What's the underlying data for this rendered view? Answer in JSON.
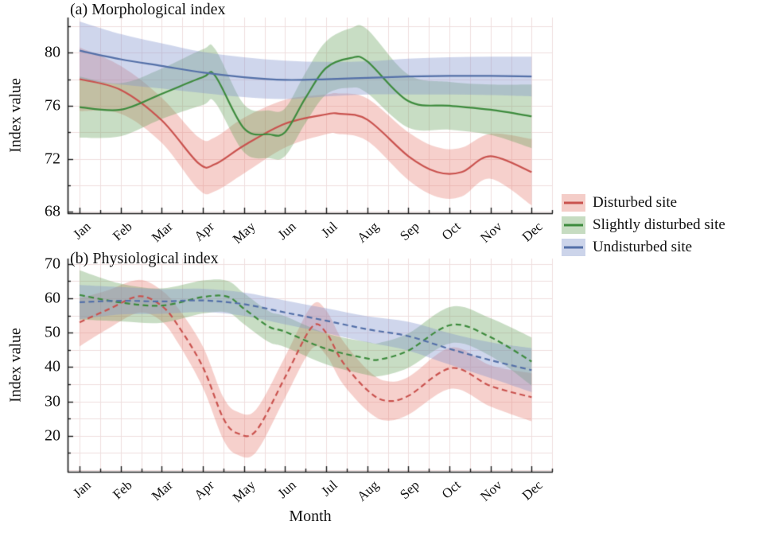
{
  "months": [
    "Jan",
    "Feb",
    "Mar",
    "Apr",
    "May",
    "Jun",
    "Jul",
    "Aug",
    "Sep",
    "Oct",
    "Nov",
    "Dec"
  ],
  "legend": {
    "items": [
      {
        "label": "Disturbed site",
        "line_color": "#c9524e",
        "swatch_fill": "#f4cdc8"
      },
      {
        "label": "Slightly disturbed site",
        "line_color": "#3d8b3d",
        "swatch_fill": "#c6dcc1"
      },
      {
        "label": "Undisturbed site",
        "line_color": "#5470a8",
        "swatch_fill": "#ccd4ea"
      }
    ]
  },
  "style": {
    "grid_color": "#efdede",
    "axis_color": "#1a1a1a",
    "text_color": "#111111"
  },
  "chart_data": [
    {
      "type": "line",
      "title": "(a) Morphological index",
      "ylabel": "Index value",
      "ylim": [
        67.9,
        82.65
      ],
      "yticks": [
        68,
        72,
        76,
        80
      ],
      "yminor": [
        70,
        74,
        78,
        82
      ],
      "grid_y": [
        68,
        70,
        72,
        74,
        76,
        78,
        80,
        82
      ],
      "line_dash": [],
      "series": [
        {
          "name": "Disturbed site",
          "color": "#c9524e",
          "band_color": "rgba(228,112,100,0.33)",
          "monthly_values": [
            78.0,
            77.2,
            74.9,
            71.6,
            73.0,
            74.7,
            75.4,
            75.0,
            72.2,
            71.0,
            72.2,
            71.0
          ],
          "control_points": [
            [
              0,
              78.0
            ],
            [
              1,
              77.2
            ],
            [
              2,
              74.9
            ],
            [
              2.9,
              71.65
            ],
            [
              3.3,
              71.6
            ],
            [
              4,
              73.0
            ],
            [
              5,
              74.65
            ],
            [
              6,
              75.35
            ],
            [
              6.3,
              75.4
            ],
            [
              7,
              74.95
            ],
            [
              8,
              72.2
            ],
            [
              8.7,
              71.0
            ],
            [
              9.3,
              71.0
            ],
            [
              10,
              72.2
            ],
            [
              11,
              71.0
            ]
          ],
          "band_halfwidth": [
            [
              0,
              2.4
            ],
            [
              1,
              1.8
            ],
            [
              2,
              1.7
            ],
            [
              3,
              2.0
            ],
            [
              4,
              2.1
            ],
            [
              5,
              1.8
            ],
            [
              6,
              1.5
            ],
            [
              7,
              1.6
            ],
            [
              8,
              1.8
            ],
            [
              9,
              1.9
            ],
            [
              10,
              1.7
            ],
            [
              11,
              2.5
            ]
          ]
        },
        {
          "name": "Slightly disturbed site",
          "color": "#3d8b3d",
          "band_color": "rgba(96,158,86,0.35)",
          "monthly_values": [
            75.9,
            75.7,
            76.9,
            78.2,
            74.3,
            74.0,
            78.9,
            79.4,
            76.4,
            76.0,
            75.7,
            75.2
          ],
          "control_points": [
            [
              0,
              75.9
            ],
            [
              1,
              75.7
            ],
            [
              2,
              76.9
            ],
            [
              3,
              78.15
            ],
            [
              3.3,
              78.25
            ],
            [
              4,
              74.3
            ],
            [
              4.6,
              73.85
            ],
            [
              5,
              74.0
            ],
            [
              5.5,
              76.6
            ],
            [
              6,
              78.85
            ],
            [
              6.6,
              79.6
            ],
            [
              7,
              79.35
            ],
            [
              8,
              76.35
            ],
            [
              9,
              76.0
            ],
            [
              10,
              75.7
            ],
            [
              11,
              75.2
            ]
          ],
          "band_halfwidth": [
            [
              0,
              2.3
            ],
            [
              1,
              2.0
            ],
            [
              2,
              1.9
            ],
            [
              3,
              2.1
            ],
            [
              4,
              1.8
            ],
            [
              5,
              1.8
            ],
            [
              6,
              2.0
            ],
            [
              7,
              2.4
            ],
            [
              8,
              2.0
            ],
            [
              9,
              1.8
            ],
            [
              10,
              1.9
            ],
            [
              11,
              2.4
            ]
          ]
        },
        {
          "name": "Undisturbed site",
          "color": "#5470a8",
          "band_color": "rgba(128,146,204,0.38)",
          "monthly_values": [
            80.2,
            79.5,
            79.0,
            78.5,
            78.2,
            78.0,
            78.0,
            78.1,
            78.2,
            78.3,
            78.3,
            78.2
          ],
          "control_points": [
            [
              0,
              80.15
            ],
            [
              1,
              79.5
            ],
            [
              2,
              79.0
            ],
            [
              3,
              78.5
            ],
            [
              4,
              78.15
            ],
            [
              5,
              77.95
            ],
            [
              6,
              78.0
            ],
            [
              7,
              78.1
            ],
            [
              8,
              78.2
            ],
            [
              9,
              78.25
            ],
            [
              10,
              78.25
            ],
            [
              11,
              78.2
            ]
          ],
          "band_halfwidth": [
            [
              0,
              2.2
            ],
            [
              1,
              1.9
            ],
            [
              2,
              1.7
            ],
            [
              3,
              1.55
            ],
            [
              4,
              1.5
            ],
            [
              5,
              1.45
            ],
            [
              6,
              1.3
            ],
            [
              7,
              1.25
            ],
            [
              8,
              1.35
            ],
            [
              9,
              1.4
            ],
            [
              10,
              1.45
            ],
            [
              11,
              1.5
            ]
          ]
        }
      ]
    },
    {
      "type": "line",
      "title": "(b) Physiological index",
      "ylabel": "Index value",
      "xlabel": "Month",
      "ylim": [
        9.5,
        71.6
      ],
      "yticks": [
        20,
        30,
        40,
        50,
        60,
        70
      ],
      "yminor": [
        15,
        25,
        35,
        45,
        55,
        65
      ],
      "grid_y": [
        10,
        15,
        20,
        25,
        30,
        35,
        40,
        45,
        50,
        55,
        60,
        65,
        70
      ],
      "line_dash": [
        7,
        4.5
      ],
      "series": [
        {
          "name": "Disturbed site",
          "color": "#c9524e",
          "band_color": "rgba(228,112,100,0.33)",
          "monthly_values": [
            53.0,
            58.2,
            57.8,
            40.0,
            21.0,
            37.0,
            50.0,
            33.4,
            31.6,
            39.6,
            34.5,
            31.2
          ],
          "control_points": [
            [
              0,
              53.0
            ],
            [
              0.7,
              56.8
            ],
            [
              1.45,
              60.6
            ],
            [
              2,
              57.8
            ],
            [
              2.4,
              52.0
            ],
            [
              3,
              40.0
            ],
            [
              3.5,
              25.0
            ],
            [
              3.85,
              20.7
            ],
            [
              4.3,
              21.5
            ],
            [
              5,
              37.0
            ],
            [
              5.65,
              51.6
            ],
            [
              6,
              50.0
            ],
            [
              6.4,
              41.5
            ],
            [
              7,
              33.3
            ],
            [
              7.45,
              30.2
            ],
            [
              8,
              31.6
            ],
            [
              9.05,
              39.7
            ],
            [
              10,
              34.5
            ],
            [
              11,
              31.2
            ]
          ],
          "band_halfwidth": [
            [
              0,
              7.0
            ],
            [
              1,
              5.0
            ],
            [
              2,
              4.5
            ],
            [
              3,
              6.0
            ],
            [
              4,
              6.3
            ],
            [
              5,
              6.0
            ],
            [
              6,
              6.5
            ],
            [
              7,
              6.0
            ],
            [
              8,
              5.5
            ],
            [
              9,
              6.0
            ],
            [
              10,
              6.0
            ],
            [
              11,
              7.0
            ]
          ]
        },
        {
          "name": "Slightly disturbed site",
          "color": "#3d8b3d",
          "band_color": "rgba(96,158,86,0.35)",
          "monthly_values": [
            61.0,
            58.8,
            57.9,
            60.4,
            57.0,
            50.3,
            45.3,
            42.3,
            44.8,
            52.3,
            48.7,
            41.6
          ],
          "control_points": [
            [
              0,
              61.0
            ],
            [
              1,
              58.8
            ],
            [
              2,
              57.9
            ],
            [
              3,
              60.4
            ],
            [
              3.6,
              60.5
            ],
            [
              4,
              57.0
            ],
            [
              4.6,
              51.8
            ],
            [
              5,
              50.3
            ],
            [
              6,
              45.3
            ],
            [
              7,
              42.5
            ],
            [
              7.3,
              42.2
            ],
            [
              8,
              44.8
            ],
            [
              9.05,
              52.3
            ],
            [
              10,
              48.7
            ],
            [
              11,
              41.6
            ]
          ],
          "band_halfwidth": [
            [
              0,
              7.2
            ],
            [
              1,
              5.5
            ],
            [
              2,
              5.0
            ],
            [
              3,
              4.8
            ],
            [
              4,
              4.5
            ],
            [
              5,
              4.5
            ],
            [
              6,
              4.5
            ],
            [
              7,
              4.8
            ],
            [
              8,
              5.0
            ],
            [
              9,
              5.3
            ],
            [
              10,
              5.5
            ],
            [
              11,
              7.0
            ]
          ]
        },
        {
          "name": "Undisturbed site",
          "color": "#5470a8",
          "band_color": "rgba(128,146,204,0.38)",
          "monthly_values": [
            58.9,
            59.3,
            59.1,
            59.4,
            58.3,
            55.9,
            53.5,
            51.0,
            49.0,
            45.3,
            42.0,
            39.1
          ],
          "control_points": [
            [
              0,
              58.9
            ],
            [
              1,
              59.3
            ],
            [
              2,
              59.1
            ],
            [
              3,
              59.4
            ],
            [
              4,
              58.3
            ],
            [
              5,
              55.9
            ],
            [
              6,
              53.5
            ],
            [
              7,
              51.0
            ],
            [
              8,
              49.0
            ],
            [
              9,
              45.3
            ],
            [
              10,
              42.0
            ],
            [
              11,
              39.1
            ]
          ],
          "band_halfwidth": [
            [
              0,
              5.0
            ],
            [
              1,
              4.0
            ],
            [
              2,
              3.6
            ],
            [
              3,
              3.4
            ],
            [
              4,
              3.4
            ],
            [
              5,
              3.5
            ],
            [
              6,
              3.6
            ],
            [
              7,
              3.8
            ],
            [
              8,
              4.2
            ],
            [
              9,
              4.6
            ],
            [
              10,
              5.2
            ],
            [
              11,
              6.4
            ]
          ]
        }
      ]
    }
  ]
}
